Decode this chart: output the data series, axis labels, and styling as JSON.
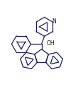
{
  "bg_color": "#ffffff",
  "line_color": "#1a1a6e",
  "line_width": 0.9,
  "fig_width": 1.17,
  "fig_height": 1.33,
  "dpi": 100
}
